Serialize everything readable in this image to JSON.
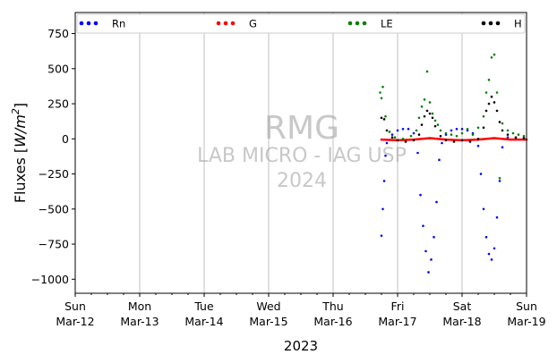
{
  "chart_data": {
    "type": "scatter",
    "title": "",
    "xlabel": "2023",
    "ylabel": "Fluxes [W/m²]",
    "ylabel_parts": {
      "main": "Fluxes [",
      "unit": "W/m",
      "sup": "2",
      "end": "]"
    },
    "xlim": [
      "2023-03-12",
      "2023-03-19"
    ],
    "ylim": [
      -1100,
      900
    ],
    "yticks": [
      750,
      500,
      250,
      0,
      -250,
      -500,
      -750,
      -1000
    ],
    "ytick_labels": [
      "750",
      "500",
      "250",
      "0",
      "−250",
      "−500",
      "−750",
      "−1000"
    ],
    "xticks": [
      {
        "date": "2023-03-12",
        "day": "Sun",
        "date_label": "Mar-12"
      },
      {
        "date": "2023-03-13",
        "day": "Mon",
        "date_label": "Mar-13"
      },
      {
        "date": "2023-03-14",
        "day": "Tue",
        "date_label": "Mar-14"
      },
      {
        "date": "2023-03-15",
        "day": "Wed",
        "date_label": "Mar-15"
      },
      {
        "date": "2023-03-16",
        "day": "Thu",
        "date_label": "Mar-16"
      },
      {
        "date": "2023-03-17",
        "day": "Fri",
        "date_label": "Mar-17"
      },
      {
        "date": "2023-03-18",
        "day": "Sat",
        "date_label": "Mar-18"
      },
      {
        "date": "2023-03-19",
        "day": "Sun",
        "date_label": "Mar-19"
      }
    ],
    "grid": "vertical",
    "legend_position": "top",
    "watermark": [
      "RMG",
      "LAB MICRO - IAG USP",
      "2024"
    ],
    "series": [
      {
        "name": "Rn",
        "color": "#0000ff",
        "points": [
          [
            "2023-03-16 18:00",
            -690
          ],
          [
            "2023-03-16 18:30",
            -500
          ],
          [
            "2023-03-16 19:00",
            -300
          ],
          [
            "2023-03-16 19:30",
            -120
          ],
          [
            "2023-03-16 20:00",
            -30
          ],
          [
            "2023-03-16 22:00",
            30
          ],
          [
            "2023-03-17 00:00",
            60
          ],
          [
            "2023-03-17 02:00",
            70
          ],
          [
            "2023-03-17 04:00",
            70
          ],
          [
            "2023-03-17 06:00",
            40
          ],
          [
            "2023-03-17 07:30",
            -100
          ],
          [
            "2023-03-17 08:30",
            -400
          ],
          [
            "2023-03-17 09:30",
            -620
          ],
          [
            "2023-03-17 10:30",
            -800
          ],
          [
            "2023-03-17 11:30",
            -950
          ],
          [
            "2023-03-17 12:30",
            -860
          ],
          [
            "2023-03-17 13:30",
            -700
          ],
          [
            "2023-03-17 14:30",
            -450
          ],
          [
            "2023-03-17 15:30",
            -150
          ],
          [
            "2023-03-17 16:30",
            -30
          ],
          [
            "2023-03-17 18:00",
            30
          ],
          [
            "2023-03-17 20:00",
            60
          ],
          [
            "2023-03-17 22:00",
            70
          ],
          [
            "2023-03-18 00:00",
            70
          ],
          [
            "2023-03-18 02:00",
            60
          ],
          [
            "2023-03-18 04:00",
            40
          ],
          [
            "2023-03-18 06:00",
            -50
          ],
          [
            "2023-03-18 07:00",
            -250
          ],
          [
            "2023-03-18 08:00",
            -500
          ],
          [
            "2023-03-18 09:00",
            -700
          ],
          [
            "2023-03-18 10:00",
            -820
          ],
          [
            "2023-03-18 11:00",
            -860
          ],
          [
            "2023-03-18 12:00",
            -780
          ],
          [
            "2023-03-18 13:00",
            -560
          ],
          [
            "2023-03-18 14:00",
            -300
          ],
          [
            "2023-03-18 15:00",
            -60
          ],
          [
            "2023-03-18 17:00",
            10
          ],
          [
            "2023-03-18 20:00",
            0
          ],
          [
            "2023-03-18 23:00",
            5
          ]
        ]
      },
      {
        "name": "G",
        "color": "#ff0000",
        "points": [
          [
            "2023-03-16 18:00",
            -5
          ],
          [
            "2023-03-17 00:00",
            -10
          ],
          [
            "2023-03-17 06:00",
            -5
          ],
          [
            "2023-03-17 12:00",
            5
          ],
          [
            "2023-03-17 18:00",
            -5
          ],
          [
            "2023-03-18 00:00",
            -10
          ],
          [
            "2023-03-18 06:00",
            -5
          ],
          [
            "2023-03-18 12:00",
            5
          ],
          [
            "2023-03-18 18:00",
            -5
          ],
          [
            "2023-03-19 00:00",
            -5
          ]
        ]
      },
      {
        "name": "LE",
        "color": "#008000",
        "points": [
          [
            "2023-03-16 17:30",
            330
          ],
          [
            "2023-03-16 18:00",
            290
          ],
          [
            "2023-03-16 18:30",
            370
          ],
          [
            "2023-03-16 19:30",
            160
          ],
          [
            "2023-03-16 21:00",
            50
          ],
          [
            "2023-03-16 23:00",
            10
          ],
          [
            "2023-03-17 02:00",
            0
          ],
          [
            "2023-03-17 05:00",
            20
          ],
          [
            "2023-03-17 07:00",
            60
          ],
          [
            "2023-03-17 08:00",
            150
          ],
          [
            "2023-03-17 09:00",
            230
          ],
          [
            "2023-03-17 10:00",
            280
          ],
          [
            "2023-03-17 11:00",
            480
          ],
          [
            "2023-03-17 12:00",
            260
          ],
          [
            "2023-03-17 13:00",
            180
          ],
          [
            "2023-03-17 14:00",
            130
          ],
          [
            "2023-03-17 15:00",
            100
          ],
          [
            "2023-03-17 16:00",
            60
          ],
          [
            "2023-03-17 18:00",
            40
          ],
          [
            "2023-03-17 20:00",
            30
          ],
          [
            "2023-03-17 22:00",
            20
          ],
          [
            "2023-03-18 00:00",
            40
          ],
          [
            "2023-03-18 02:00",
            70
          ],
          [
            "2023-03-18 04:00",
            30
          ],
          [
            "2023-03-18 06:00",
            80
          ],
          [
            "2023-03-18 08:00",
            160
          ],
          [
            "2023-03-18 09:00",
            330
          ],
          [
            "2023-03-18 10:00",
            420
          ],
          [
            "2023-03-18 11:00",
            580
          ],
          [
            "2023-03-18 12:00",
            600
          ],
          [
            "2023-03-18 13:00",
            330
          ],
          [
            "2023-03-18 14:00",
            -280
          ],
          [
            "2023-03-18 15:00",
            110
          ],
          [
            "2023-03-18 17:00",
            60
          ],
          [
            "2023-03-18 19:00",
            40
          ],
          [
            "2023-03-18 21:00",
            30
          ],
          [
            "2023-03-18 23:00",
            20
          ]
        ]
      },
      {
        "name": "H",
        "color": "#000000",
        "points": [
          [
            "2023-03-16 18:00",
            150
          ],
          [
            "2023-03-16 19:00",
            140
          ],
          [
            "2023-03-16 20:00",
            60
          ],
          [
            "2023-03-16 22:00",
            10
          ],
          [
            "2023-03-17 00:00",
            -10
          ],
          [
            "2023-03-17 03:00",
            -20
          ],
          [
            "2023-03-17 06:00",
            -10
          ],
          [
            "2023-03-17 08:00",
            30
          ],
          [
            "2023-03-17 09:00",
            100
          ],
          [
            "2023-03-17 10:00",
            160
          ],
          [
            "2023-03-17 11:00",
            200
          ],
          [
            "2023-03-17 12:00",
            180
          ],
          [
            "2023-03-17 13:00",
            150
          ],
          [
            "2023-03-17 14:00",
            90
          ],
          [
            "2023-03-17 16:00",
            20
          ],
          [
            "2023-03-17 18:00",
            -10
          ],
          [
            "2023-03-17 21:00",
            -20
          ],
          [
            "2023-03-18 00:00",
            -10
          ],
          [
            "2023-03-18 03:00",
            -20
          ],
          [
            "2023-03-18 06:00",
            0
          ],
          [
            "2023-03-18 08:00",
            80
          ],
          [
            "2023-03-18 09:00",
            200
          ],
          [
            "2023-03-18 10:00",
            250
          ],
          [
            "2023-03-18 11:00",
            300
          ],
          [
            "2023-03-18 12:00",
            260
          ],
          [
            "2023-03-18 13:00",
            200
          ],
          [
            "2023-03-18 14:00",
            120
          ],
          [
            "2023-03-18 15:00",
            60
          ],
          [
            "2023-03-18 17:00",
            30
          ],
          [
            "2023-03-18 20:00",
            10
          ],
          [
            "2023-03-18 23:00",
            5
          ]
        ]
      }
    ]
  }
}
